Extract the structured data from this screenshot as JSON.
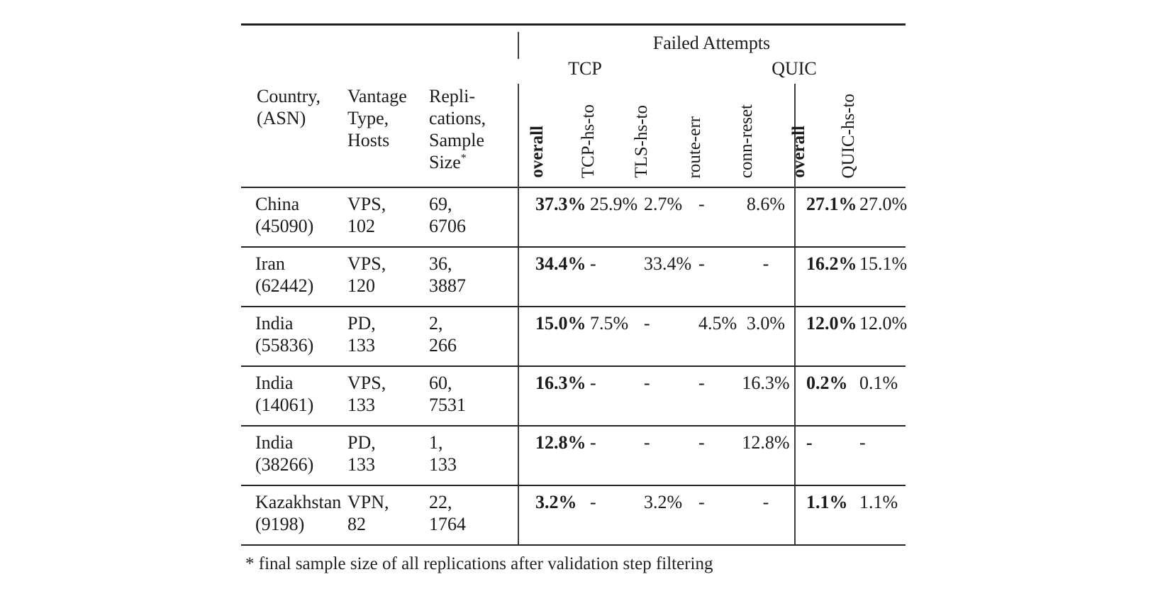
{
  "table": {
    "group_header": "Failed Attempts",
    "tcp_group": "TCP",
    "quic_group": "QUIC",
    "headers": {
      "country": [
        "Country,",
        "(ASN)"
      ],
      "vantage": [
        "Vantage",
        "Type,",
        "Hosts"
      ],
      "replications": [
        "Repli-",
        "cations,",
        "Sample"
      ],
      "sample_size_word": "Size",
      "sample_size_star": "*",
      "rotated": [
        "overall",
        "TCP-hs-to",
        "TLS-hs-to",
        "route-err",
        "conn-reset",
        "overall",
        "QUIC-hs-to"
      ]
    },
    "rows": [
      {
        "country": "China",
        "asn": "(45090)",
        "vantage": "VPS,",
        "hosts": "102",
        "replications": "69,",
        "sample_size": "6706",
        "tcp_overall": "37.3%",
        "tcp_hs_to": "25.9%",
        "tls_hs_to": "2.7%",
        "route_err": "-",
        "conn_reset": "8.6%",
        "quic_overall": "27.1%",
        "quic_hs_to": "27.0%"
      },
      {
        "country": "Iran",
        "asn": "(62442)",
        "vantage": "VPS,",
        "hosts": "120",
        "replications": "36,",
        "sample_size": "3887",
        "tcp_overall": "34.4%",
        "tcp_hs_to": "-",
        "tls_hs_to": "33.4%",
        "route_err": "-",
        "conn_reset": "-",
        "quic_overall": "16.2%",
        "quic_hs_to": "15.1%"
      },
      {
        "country": "India",
        "asn": "(55836)",
        "vantage": "PD,",
        "hosts": "133",
        "replications": "2,",
        "sample_size": "266",
        "tcp_overall": "15.0%",
        "tcp_hs_to": "7.5%",
        "tls_hs_to": "-",
        "route_err": "4.5%",
        "conn_reset": "3.0%",
        "quic_overall": "12.0%",
        "quic_hs_to": "12.0%"
      },
      {
        "country": "India",
        "asn": "(14061)",
        "vantage": "VPS,",
        "hosts": "133",
        "replications": "60,",
        "sample_size": "7531",
        "tcp_overall": "16.3%",
        "tcp_hs_to": "-",
        "tls_hs_to": "-",
        "route_err": "-",
        "conn_reset": "16.3%",
        "quic_overall": "0.2%",
        "quic_hs_to": "0.1%"
      },
      {
        "country": "India",
        "asn": "(38266)",
        "vantage": "PD,",
        "hosts": "133",
        "replications": "1,",
        "sample_size": "133",
        "tcp_overall": "12.8%",
        "tcp_hs_to": "-",
        "tls_hs_to": "-",
        "route_err": "-",
        "conn_reset": "12.8%",
        "quic_overall": "-",
        "quic_hs_to": "-"
      },
      {
        "country": "Kazakhstan",
        "asn": "(9198)",
        "vantage": "VPN,",
        "hosts": "82",
        "replications": "22,",
        "sample_size": "1764",
        "tcp_overall": "3.2%",
        "tcp_hs_to": "-",
        "tls_hs_to": "3.2%",
        "route_err": "-",
        "conn_reset": "-",
        "quic_overall": "1.1%",
        "quic_hs_to": "1.1%"
      }
    ],
    "footnote": "* final sample size of all replications after validation step filtering"
  }
}
